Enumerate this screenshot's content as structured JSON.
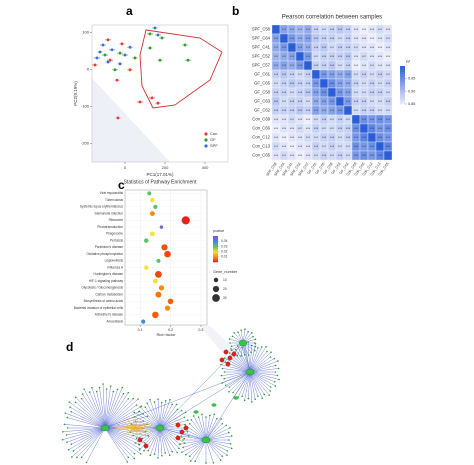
{
  "panel_labels": [
    "a",
    "b",
    "c",
    "d"
  ],
  "chart_data": [
    {
      "type": "scatter",
      "xlabel": "PC1(17.01%)",
      "ylabel": "PC2(9.19%)",
      "xlim": [
        -165,
        515
      ],
      "ylim": [
        -250,
        120
      ],
      "xticks": [
        0,
        200,
        400
      ],
      "yticks": [
        100,
        0,
        -100,
        -200
      ],
      "legend": "lower right",
      "series": [
        {
          "name": "Con",
          "color": "#e0402f",
          "x": [
            -85,
            -15,
            75,
            135,
            165,
            -35,
            -150,
            -75,
            25,
            -40
          ],
          "values": [
            80,
            69,
            -88,
            -77,
            -91,
            -131,
            12,
            25,
            -1,
            -29
          ],
          "xerr": [
            14,
            12,
            16,
            15,
            13,
            12,
            14,
            15,
            13,
            12
          ]
        },
        {
          "name": "GF",
          "color": "#2ca02c",
          "x": [
            125,
            185,
            300,
            315,
            125,
            -25,
            -100,
            50,
            175,
            -50
          ],
          "values": [
            96,
            85,
            66,
            25,
            58,
            44,
            39,
            31,
            25,
            -1
          ],
          "xerr": [
            15,
            14,
            13,
            16,
            12,
            14,
            15,
            13,
            12,
            14
          ]
        },
        {
          "name": "SPF",
          "color": "#3b6fd4",
          "x": [
            150,
            165,
            -65,
            -125,
            0,
            -85,
            -140,
            -25,
            -110,
            25
          ],
          "values": [
            112,
            93,
            53,
            47,
            39,
            20,
            31,
            15,
            66,
            60
          ],
          "xerr": [
            13,
            14,
            15,
            12,
            14,
            13,
            15,
            12,
            14,
            13
          ]
        }
      ]
    },
    {
      "type": "heatmap",
      "title": "Pearson correlation between samples",
      "categories": [
        "SPF_C58",
        "SPF_C64",
        "SPF_C41",
        "SPF_C52",
        "SPF_C57",
        "GF_C61",
        "GF_C65",
        "GF_C58",
        "GF_C63",
        "GF_C62",
        "Con_C69",
        "Con_C66",
        "Con_C12",
        "Con_C13",
        "Con_C65"
      ],
      "values": [
        [
          1,
          0.93,
          0.92,
          0.91,
          0.92,
          0.88,
          0.87,
          0.88,
          0.89,
          0.88,
          0.86,
          0.85,
          0.86,
          0.87,
          0.86
        ],
        [
          0.93,
          1,
          0.94,
          0.92,
          0.93,
          0.89,
          0.88,
          0.88,
          0.87,
          0.88,
          0.86,
          0.86,
          0.85,
          0.86,
          0.87
        ],
        [
          0.92,
          0.94,
          1,
          0.93,
          0.92,
          0.88,
          0.89,
          0.87,
          0.88,
          0.88,
          0.87,
          0.86,
          0.86,
          0.85,
          0.86
        ],
        [
          0.91,
          0.92,
          0.93,
          1,
          0.94,
          0.87,
          0.88,
          0.88,
          0.88,
          0.89,
          0.86,
          0.87,
          0.86,
          0.86,
          0.85
        ],
        [
          0.92,
          0.93,
          0.92,
          0.94,
          1,
          0.88,
          0.88,
          0.89,
          0.87,
          0.88,
          0.85,
          0.86,
          0.87,
          0.86,
          0.86
        ],
        [
          0.88,
          0.89,
          0.88,
          0.87,
          0.88,
          1,
          0.94,
          0.93,
          0.92,
          0.93,
          0.87,
          0.88,
          0.87,
          0.88,
          0.87
        ],
        [
          0.87,
          0.88,
          0.89,
          0.88,
          0.88,
          0.94,
          1,
          0.95,
          0.93,
          0.92,
          0.88,
          0.87,
          0.88,
          0.87,
          0.88
        ],
        [
          0.88,
          0.88,
          0.87,
          0.88,
          0.89,
          0.93,
          0.95,
          1,
          0.94,
          0.93,
          0.87,
          0.87,
          0.88,
          0.88,
          0.87
        ],
        [
          0.89,
          0.87,
          0.88,
          0.88,
          0.87,
          0.92,
          0.93,
          0.94,
          1,
          0.94,
          0.88,
          0.88,
          0.87,
          0.87,
          0.88
        ],
        [
          0.88,
          0.88,
          0.88,
          0.89,
          0.88,
          0.93,
          0.92,
          0.93,
          0.94,
          1,
          0.87,
          0.88,
          0.88,
          0.87,
          0.87
        ],
        [
          0.86,
          0.86,
          0.87,
          0.86,
          0.85,
          0.87,
          0.88,
          0.87,
          0.88,
          0.87,
          1,
          0.95,
          0.94,
          0.95,
          0.94
        ],
        [
          0.85,
          0.86,
          0.86,
          0.87,
          0.86,
          0.88,
          0.87,
          0.87,
          0.88,
          0.88,
          0.95,
          1,
          0.96,
          0.94,
          0.95
        ],
        [
          0.86,
          0.85,
          0.86,
          0.86,
          0.87,
          0.87,
          0.88,
          0.88,
          0.87,
          0.88,
          0.94,
          0.96,
          1,
          0.95,
          0.94
        ],
        [
          0.87,
          0.86,
          0.85,
          0.86,
          0.86,
          0.88,
          0.87,
          0.88,
          0.87,
          0.87,
          0.95,
          0.94,
          0.95,
          1,
          0.96
        ],
        [
          0.86,
          0.87,
          0.86,
          0.85,
          0.86,
          0.87,
          0.88,
          0.87,
          0.88,
          0.87,
          0.94,
          0.95,
          0.94,
          0.96,
          1
        ]
      ],
      "colors": [
        "#eceefb",
        "#2b5fd9"
      ],
      "color_lim": [
        0.85,
        1
      ],
      "color_title": "R²",
      "color_ticks": [
        0.85,
        {
          "value": 0.9,
          "label": "0.90"
        },
        0.95
      ]
    },
    {
      "type": "dot",
      "title": "Statistics of Pathway Enrichment",
      "xlabel": "Rich factor",
      "categories": [
        "Viral myocarditis",
        "Tuberculosis",
        "Systemic lupus erythematosus",
        "Salmonella infection",
        "Ribosome",
        "Phototransduction",
        "Phagosome",
        "Pertussis",
        "Parkinson's disease",
        "Oxidative phosphorylation",
        "Legionellosis",
        "Influenza A",
        "Huntington's disease",
        "HIF-1 signaling pathway",
        "Glycolysis / Gluconeogenesis",
        "Carbon metabolism",
        "Biosynthesis of amino acids",
        "Bacterial invasion of epithelial cells",
        "Alzheimer's disease",
        "Amoebiasis"
      ],
      "x": [
        0.13,
        0.14,
        0.15,
        0.14,
        0.25,
        0.17,
        0.14,
        0.12,
        0.18,
        0.19,
        0.16,
        0.12,
        0.16,
        0.15,
        0.17,
        0.16,
        0.2,
        0.19,
        0.15,
        0.11
      ],
      "size": [
        8,
        10,
        9,
        12,
        35,
        6,
        12,
        10,
        20,
        22,
        8,
        10,
        24,
        12,
        14,
        18,
        16,
        14,
        22,
        9
      ],
      "pvalue": [
        0.03,
        0.02,
        0.03,
        0.01,
        0.001,
        0.045,
        0.02,
        0.03,
        0.005,
        0.004,
        0.03,
        0.02,
        0.004,
        0.02,
        0.01,
        0.008,
        0.006,
        0.01,
        0.006,
        0.04
      ],
      "xlim": [
        0.05,
        0.32
      ],
      "xticks": [
        0.1,
        0.2,
        0.3
      ],
      "grid": true,
      "color_title": "pvalue",
      "color_lim": [
        0,
        0.05
      ],
      "color_ticks": [
        0.01,
        0.02,
        0.03,
        0.04
      ],
      "colors": [
        "#e31a1c",
        "#ff8c00",
        "#f2e33a",
        "#5cc26a",
        "#3d8fd8",
        "#8a4fd6"
      ],
      "size_title": "Gene_number",
      "size_ticks": [
        10,
        20,
        30
      ]
    }
  ]
}
